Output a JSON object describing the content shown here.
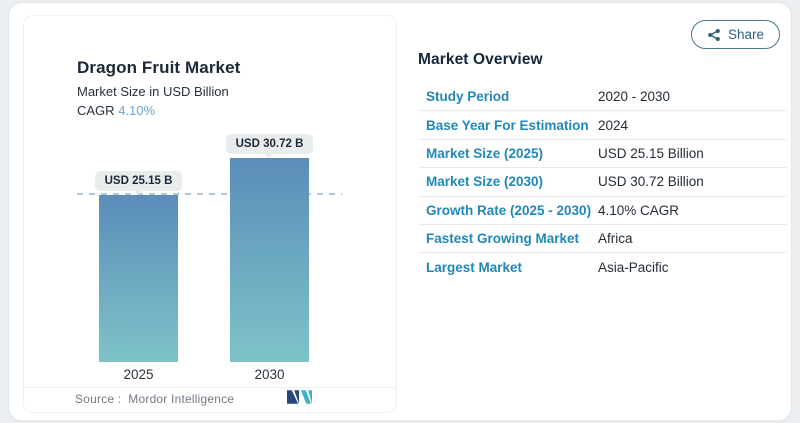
{
  "share": {
    "label": "Share"
  },
  "chart": {
    "title": "Dragon Fruit Market",
    "subtitle": "Market Size in USD Billion",
    "cagr_label": "CAGR",
    "cagr_value": "4.10%",
    "source_label": "Source :",
    "source_value": "Mordor Intelligence"
  },
  "chart_data": {
    "type": "bar",
    "title": "Dragon Fruit Market",
    "ylabel": "Market Size in USD Billion",
    "categories": [
      "2025",
      "2030"
    ],
    "values": [
      25.15,
      30.72
    ],
    "value_labels": [
      "USD 25.15 B",
      "USD 30.72 B"
    ],
    "ylim": [
      0,
      33
    ],
    "grid": false,
    "legend": false,
    "reference_line": {
      "at_value": 25.15,
      "style": "dashed"
    },
    "bar_gradient_top": "#5a8db9",
    "bar_gradient_bottom": "#7ec3c8"
  },
  "overview": {
    "heading": "Market Overview",
    "rows": [
      {
        "label": "Study Period",
        "value": "2020 - 2030"
      },
      {
        "label": "Base Year For Estimation",
        "value": "2024"
      },
      {
        "label": "Market Size (2025)",
        "value": "USD 25.15 Billion"
      },
      {
        "label": "Market Size (2030)",
        "value": "USD 30.72 Billion"
      },
      {
        "label": "Growth Rate (2025 - 2030)",
        "value": "4.10% CAGR"
      },
      {
        "label": "Fastest Growing Market",
        "value": "Africa"
      },
      {
        "label": "Largest Market",
        "value": "Asia-Pacific"
      }
    ]
  },
  "icons": {
    "share": "share-nodes-icon",
    "logo": "mordor-intelligence-logo"
  },
  "colors": {
    "accent_label_blue": "#2187b8",
    "cagr_blue": "#6ea3d6",
    "dark_text": "#1c2a38",
    "value_text": "#232d36",
    "pill_bg": "#e9eced",
    "dashed_line": "#b3c6d3",
    "source_gray": "#707a83",
    "share_teal": "#2d607a",
    "logo_navy": "#27477d",
    "logo_teal": "#3fb3c5",
    "page_bg": "#eceff1",
    "card_border": "#e4e8eb"
  }
}
